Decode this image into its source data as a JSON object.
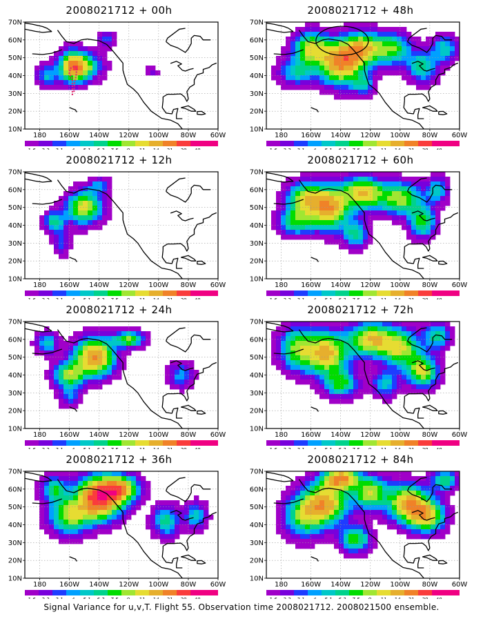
{
  "footer": "Signal Variance for u,v,T. Flight 55. Observation time 2008021712. 2008021500 ensemble.",
  "chart_data": {
    "type": "heatmap",
    "panels": [
      {
        "title": "2008021712 + 00h",
        "lead_hours": 0,
        "blobs": [
          [
            -158,
            45,
            6,
            6,
            3.0
          ],
          [
            -150,
            45,
            8,
            5,
            2.2
          ],
          [
            -175,
            40,
            5,
            4,
            1.4
          ],
          [
            -135,
            60,
            4,
            3,
            1.0
          ],
          [
            -105,
            42,
            3,
            2,
            0.6
          ]
        ],
        "route_marker": true,
        "highlight_circle": false
      },
      {
        "title": "2008021712 + 12h",
        "lead_hours": 12,
        "blobs": [
          [
            -150,
            50,
            8,
            6,
            3.0
          ],
          [
            -170,
            42,
            5,
            4,
            1.8
          ],
          [
            -140,
            62,
            5,
            3,
            1.2
          ],
          [
            -165,
            30,
            4,
            5,
            0.9
          ]
        ],
        "route_marker": false,
        "highlight_circle": false
      },
      {
        "title": "2008021712 + 24h",
        "lead_hours": 24,
        "blobs": [
          [
            -143,
            50,
            9,
            7,
            4.0
          ],
          [
            -160,
            40,
            7,
            5,
            2.5
          ],
          [
            -120,
            60,
            7,
            3,
            2.5
          ],
          [
            -175,
            58,
            5,
            4,
            1.6
          ],
          [
            -85,
            40,
            6,
            5,
            1.2
          ],
          [
            -160,
            28,
            5,
            4,
            1.0
          ]
        ],
        "route_marker": false,
        "highlight_circle": false
      },
      {
        "title": "2008021712 + 36h",
        "lead_hours": 36,
        "blobs": [
          [
            -140,
            55,
            10,
            8,
            5.0
          ],
          [
            -125,
            60,
            8,
            5,
            3.2
          ],
          [
            -160,
            45,
            9,
            7,
            2.6
          ],
          [
            -170,
            60,
            6,
            5,
            1.8
          ],
          [
            -95,
            42,
            6,
            6,
            1.8
          ],
          [
            -75,
            45,
            5,
            5,
            1.6
          ]
        ],
        "route_marker": false,
        "highlight_circle": false
      },
      {
        "title": "2008021712 + 48h",
        "lead_hours": 48,
        "blobs": [
          [
            -140,
            47,
            10,
            8,
            4.0
          ],
          [
            -125,
            55,
            9,
            6,
            3.0
          ],
          [
            -160,
            55,
            8,
            6,
            2.8
          ],
          [
            -105,
            55,
            8,
            6,
            2.2
          ],
          [
            -170,
            42,
            8,
            5,
            1.6
          ],
          [
            -125,
            35,
            5,
            4,
            1.4
          ],
          [
            -85,
            45,
            7,
            6,
            1.8
          ],
          [
            -70,
            55,
            6,
            5,
            1.6
          ]
        ],
        "route_marker": false,
        "highlight_circle": true
      },
      {
        "title": "2008021712 + 60h",
        "lead_hours": 60,
        "blobs": [
          [
            -148,
            50,
            9,
            8,
            3.8
          ],
          [
            -125,
            58,
            9,
            6,
            3.2
          ],
          [
            -165,
            55,
            8,
            6,
            2.6
          ],
          [
            -100,
            55,
            10,
            6,
            2.6
          ],
          [
            -85,
            42,
            6,
            6,
            2.2
          ],
          [
            -170,
            42,
            8,
            5,
            2.0
          ],
          [
            -130,
            35,
            6,
            5,
            1.8
          ],
          [
            -75,
            60,
            5,
            5,
            1.5
          ]
        ],
        "route_marker": false,
        "highlight_circle": false
      },
      {
        "title": "2008021712 + 72h",
        "lead_hours": 72,
        "blobs": [
          [
            -150,
            52,
            10,
            8,
            3.5
          ],
          [
            -120,
            60,
            10,
            6,
            3.2
          ],
          [
            -100,
            55,
            9,
            7,
            2.8
          ],
          [
            -85,
            42,
            7,
            6,
            2.8
          ],
          [
            -170,
            55,
            8,
            8,
            2.2
          ],
          [
            -140,
            35,
            8,
            5,
            2.0
          ],
          [
            -75,
            62,
            6,
            5,
            1.8
          ],
          [
            -110,
            35,
            6,
            5,
            1.5
          ]
        ],
        "route_marker": false,
        "highlight_circle": false
      },
      {
        "title": "2008021712 + 84h",
        "lead_hours": 84,
        "blobs": [
          [
            -150,
            52,
            10,
            8,
            3.5
          ],
          [
            -140,
            66,
            8,
            4,
            3.8
          ],
          [
            -95,
            52,
            9,
            7,
            3.5
          ],
          [
            -82,
            45,
            8,
            6,
            3.2
          ],
          [
            -120,
            58,
            8,
            6,
            2.8
          ],
          [
            -165,
            45,
            9,
            8,
            2.2
          ],
          [
            -130,
            32,
            7,
            5,
            2.2
          ],
          [
            -70,
            65,
            6,
            4,
            2.0
          ]
        ],
        "route_marker": false,
        "highlight_circle": false
      }
    ],
    "xlim": [
      -190,
      -60
    ],
    "ylim": [
      10,
      70
    ],
    "x_ticks": [
      -180,
      -160,
      -140,
      -120,
      -100,
      -80,
      -60
    ],
    "x_tick_labels": [
      "180",
      "160W",
      "140W",
      "120W",
      "100W",
      "80W",
      "60W"
    ],
    "y_ticks": [
      10,
      20,
      30,
      40,
      50,
      60,
      70
    ],
    "y_tick_labels": [
      "10N",
      "20N",
      "30N",
      "40N",
      "50N",
      "60N",
      "70N"
    ],
    "grid": true,
    "colorbar": {
      "levels": [
        "1.6",
        "2.2",
        "3.1",
        "4",
        "5.1",
        "6.3",
        "7.5",
        "9",
        "11",
        "14",
        "21",
        "29",
        "40"
      ],
      "colors": [
        "#a000c8",
        "#7800dc",
        "#1e3cff",
        "#00a0ff",
        "#00c8c8",
        "#00d28c",
        "#00dc00",
        "#a0e632",
        "#e6dc32",
        "#e6af2d",
        "#f08228",
        "#fa3c3c",
        "#f00082"
      ]
    }
  }
}
